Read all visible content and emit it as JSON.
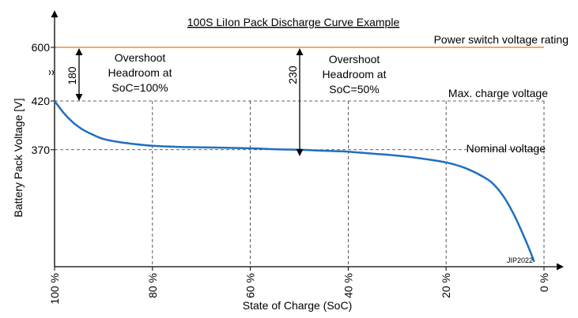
{
  "chart_data": {
    "type": "line",
    "title": "100S LiIon Pack Discharge Curve Example",
    "xlabel": "State of Charge (SoC)",
    "ylabel": "Battery Pack Voltage [V]",
    "x_reversed": true,
    "xlim": [
      100,
      0
    ],
    "x_ticks": [
      {
        "value": 100,
        "label": "100 %"
      },
      {
        "value": 80,
        "label": "80 %"
      },
      {
        "value": 60,
        "label": "60 %"
      },
      {
        "value": 40,
        "label": "40 %"
      },
      {
        "value": 20,
        "label": "20 %"
      },
      {
        "value": 0,
        "label": "0 %"
      }
    ],
    "y_axis_break": true,
    "y_ticks": [
      {
        "value": 370,
        "label": "370"
      },
      {
        "value": 420,
        "label": "420"
      },
      {
        "value": 600,
        "label": "600"
      }
    ],
    "grid": "dashed at x ticks and y reference levels",
    "series": [
      {
        "color": "#1f6fbf",
        "x": [
          100,
          98,
          96,
          94,
          92,
          90,
          87,
          84,
          80,
          75,
          70,
          65,
          60,
          55,
          50,
          45,
          40,
          35,
          30,
          25,
          20,
          16,
          12,
          10,
          8,
          6,
          4,
          3,
          2
        ],
        "y": [
          420,
          407,
          397,
          390,
          385,
          381,
          378,
          376,
          374,
          373,
          372.5,
          372,
          371.5,
          370.5,
          370,
          369,
          368,
          366,
          364,
          361,
          357,
          351,
          341,
          333,
          320,
          302,
          280,
          268,
          255
        ]
      }
    ],
    "reference_lines": [
      {
        "value": 600,
        "label": "Power switch voltage rating",
        "color": "#f0a868"
      },
      {
        "value": 420,
        "label": "Max. charge voltage"
      },
      {
        "value": 370,
        "label": "Nominal voltage"
      }
    ],
    "annotations": [
      {
        "type": "arrow",
        "x": 95,
        "from": 420,
        "to": 600,
        "value_label": "180",
        "text": [
          "Overshoot",
          "Headroom at",
          "SoC=100%"
        ]
      },
      {
        "type": "arrow",
        "x": 50,
        "from": 370,
        "to": 600,
        "value_label": "230",
        "text": [
          "Overshoot",
          "Headroom at",
          "SoC=50%"
        ]
      }
    ],
    "watermark": "JIP2022",
    "colors": {
      "curve": "#1f6fbf",
      "rating_line": "#f0a868",
      "axis": "#000000",
      "grid": "#333333"
    }
  }
}
